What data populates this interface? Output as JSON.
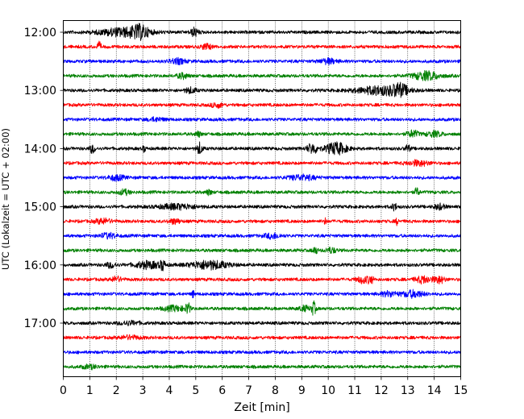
{
  "chart_data": {
    "type": "line",
    "xlabel": "Zeit  [min]",
    "ylabel": "UTC (Lokalzeit = UTC + 02:00)",
    "xlim": [
      0,
      15
    ],
    "x_ticks": [
      0,
      1,
      2,
      3,
      4,
      5,
      6,
      7,
      8,
      9,
      10,
      11,
      12,
      13,
      14,
      15
    ],
    "y_tick_labels": [
      "12:00",
      "13:00",
      "14:00",
      "15:00",
      "16:00",
      "17:00"
    ],
    "grid": "vertical dotted lines at each minute",
    "color_cycle": [
      "#000000",
      "#ff0000",
      "#0000ff",
      "#008000"
    ],
    "rows": [
      {
        "start": "12:00",
        "color": "#000000",
        "events": [
          {
            "t": 2.3,
            "a": 5,
            "w": 0.9
          },
          {
            "t": 2.9,
            "a": 6,
            "w": 0.3
          },
          {
            "t": 4.95,
            "a": 5,
            "w": 0.15
          }
        ]
      },
      {
        "start": "12:15",
        "color": "#ff0000",
        "events": [
          {
            "t": 1.35,
            "a": 5,
            "w": 0.08
          },
          {
            "t": 5.4,
            "a": 3,
            "w": 0.2
          }
        ]
      },
      {
        "start": "12:30",
        "color": "#0000ff",
        "events": [
          {
            "t": 4.3,
            "a": 3,
            "w": 0.3
          },
          {
            "t": 10.0,
            "a": 3,
            "w": 0.3
          }
        ]
      },
      {
        "start": "12:45",
        "color": "#008000",
        "events": [
          {
            "t": 4.5,
            "a": 3,
            "w": 0.2
          },
          {
            "t": 13.7,
            "a": 5,
            "w": 0.5
          }
        ]
      },
      {
        "start": "13:00",
        "color": "#000000",
        "events": [
          {
            "t": 4.8,
            "a": 3,
            "w": 0.2
          },
          {
            "t": 12.0,
            "a": 5,
            "w": 0.9
          },
          {
            "t": 12.7,
            "a": 6,
            "w": 0.3
          }
        ]
      },
      {
        "start": "13:15",
        "color": "#ff0000",
        "events": [
          {
            "t": 5.8,
            "a": 3,
            "w": 0.2
          }
        ]
      },
      {
        "start": "13:30",
        "color": "#0000ff",
        "events": [
          {
            "t": 3.5,
            "a": 2,
            "w": 0.3
          }
        ]
      },
      {
        "start": "13:45",
        "color": "#008000",
        "events": [
          {
            "t": 5.1,
            "a": 3,
            "w": 0.1
          },
          {
            "t": 13.2,
            "a": 4,
            "w": 0.2
          },
          {
            "t": 14.0,
            "a": 3,
            "w": 0.3
          }
        ]
      },
      {
        "start": "14:00",
        "color": "#000000",
        "events": [
          {
            "t": 1.1,
            "a": 5,
            "w": 0.1
          },
          {
            "t": 3.05,
            "a": 4,
            "w": 0.05
          },
          {
            "t": 5.15,
            "a": 7,
            "w": 0.1
          },
          {
            "t": 9.4,
            "a": 6,
            "w": 0.2
          },
          {
            "t": 10.3,
            "a": 7,
            "w": 0.4
          },
          {
            "t": 13.0,
            "a": 4,
            "w": 0.1
          }
        ]
      },
      {
        "start": "14:15",
        "color": "#ff0000",
        "events": [
          {
            "t": 13.4,
            "a": 3,
            "w": 0.4
          }
        ]
      },
      {
        "start": "14:30",
        "color": "#0000ff",
        "events": [
          {
            "t": 2.0,
            "a": 3,
            "w": 0.3
          },
          {
            "t": 9.0,
            "a": 3,
            "w": 0.5
          }
        ]
      },
      {
        "start": "14:45",
        "color": "#008000",
        "events": [
          {
            "t": 2.3,
            "a": 3,
            "w": 0.2
          },
          {
            "t": 5.5,
            "a": 3,
            "w": 0.1
          },
          {
            "t": 13.35,
            "a": 5,
            "w": 0.08
          }
        ]
      },
      {
        "start": "15:00",
        "color": "#000000",
        "events": [
          {
            "t": 4.3,
            "a": 3,
            "w": 0.7
          },
          {
            "t": 12.5,
            "a": 4,
            "w": 0.1
          },
          {
            "t": 14.2,
            "a": 3,
            "w": 0.2
          }
        ]
      },
      {
        "start": "15:15",
        "color": "#ff0000",
        "events": [
          {
            "t": 1.5,
            "a": 3,
            "w": 0.3
          },
          {
            "t": 4.2,
            "a": 3,
            "w": 0.2
          },
          {
            "t": 9.9,
            "a": 4,
            "w": 0.05
          },
          {
            "t": 12.6,
            "a": 4,
            "w": 0.05
          }
        ]
      },
      {
        "start": "15:30",
        "color": "#0000ff",
        "events": [
          {
            "t": 1.7,
            "a": 3,
            "w": 0.3
          },
          {
            "t": 7.9,
            "a": 3,
            "w": 0.3
          }
        ]
      },
      {
        "start": "15:45",
        "color": "#008000",
        "events": [
          {
            "t": 9.5,
            "a": 4,
            "w": 0.1
          },
          {
            "t": 10.1,
            "a": 3,
            "w": 0.2
          }
        ]
      },
      {
        "start": "16:00",
        "color": "#000000",
        "events": [
          {
            "t": 1.8,
            "a": 3,
            "w": 0.2
          },
          {
            "t": 3.2,
            "a": 4,
            "w": 0.5
          },
          {
            "t": 3.75,
            "a": 6,
            "w": 0.08
          },
          {
            "t": 5.5,
            "a": 5,
            "w": 0.7
          }
        ]
      },
      {
        "start": "16:15",
        "color": "#ff0000",
        "events": [
          {
            "t": 2.0,
            "a": 3,
            "w": 0.2
          },
          {
            "t": 11.3,
            "a": 4,
            "w": 0.2
          },
          {
            "t": 11.6,
            "a": 5,
            "w": 0.1
          },
          {
            "t": 13.6,
            "a": 4,
            "w": 0.3
          },
          {
            "t": 14.2,
            "a": 4,
            "w": 0.2
          }
        ]
      },
      {
        "start": "16:30",
        "color": "#0000ff",
        "events": [
          {
            "t": 4.9,
            "a": 4,
            "w": 0.05
          },
          {
            "t": 12.3,
            "a": 3,
            "w": 0.3
          },
          {
            "t": 13.2,
            "a": 4,
            "w": 0.4
          }
        ]
      },
      {
        "start": "16:45",
        "color": "#008000",
        "events": [
          {
            "t": 4.2,
            "a": 3,
            "w": 0.4
          },
          {
            "t": 4.7,
            "a": 7,
            "w": 0.08
          },
          {
            "t": 9.45,
            "a": 8,
            "w": 0.08
          },
          {
            "t": 9.1,
            "a": 3,
            "w": 0.2
          }
        ]
      },
      {
        "start": "17:00",
        "color": "#000000",
        "events": [
          {
            "t": 2.5,
            "a": 2,
            "w": 0.4
          }
        ]
      },
      {
        "start": "17:15",
        "color": "#ff0000",
        "events": [
          {
            "t": 2.5,
            "a": 2,
            "w": 0.4
          }
        ]
      },
      {
        "start": "17:30",
        "color": "#0000ff",
        "events": []
      },
      {
        "start": "17:45",
        "color": "#008000",
        "events": [
          {
            "t": 1.0,
            "a": 2,
            "w": 0.3
          }
        ]
      }
    ]
  }
}
